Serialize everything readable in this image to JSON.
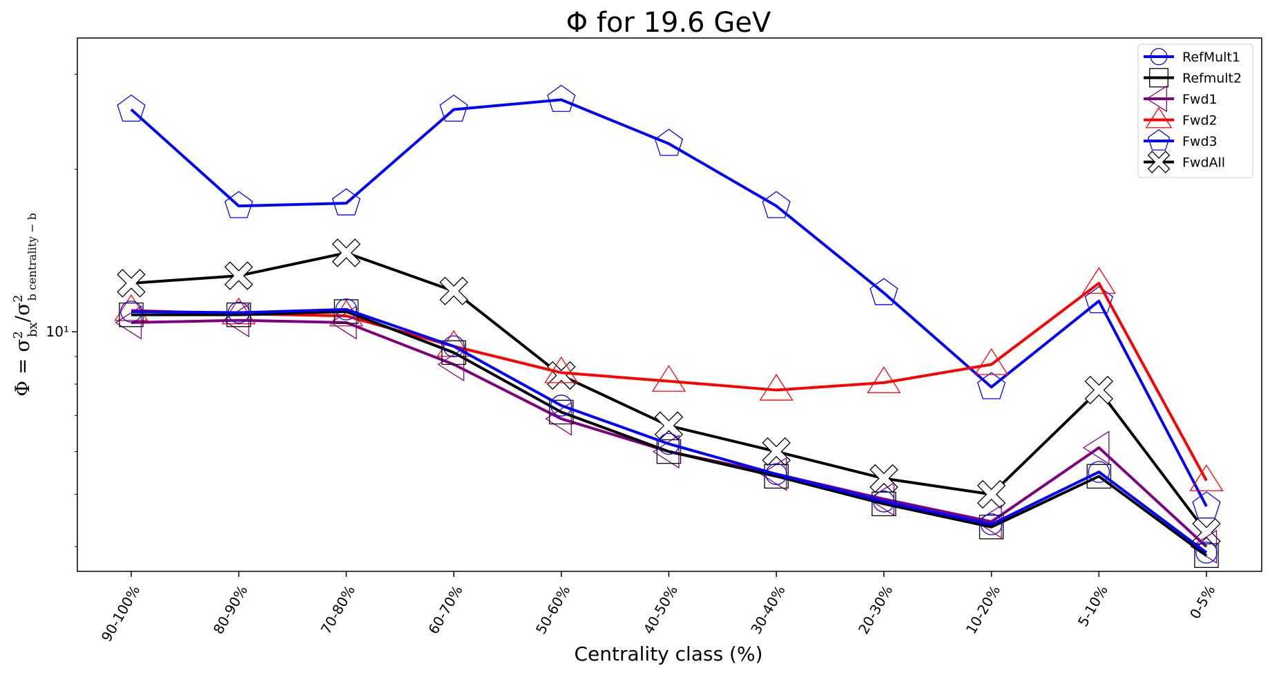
{
  "chart_data": {
    "type": "line",
    "title": "Φ for 19.6 GeV",
    "xlabel": "Centrality class (%)",
    "ylabel": "Φ = σ²_bx / σ²_b_centrality − b",
    "y_scale": "log",
    "ylim": [
      3.6,
      35
    ],
    "y_ticks": [
      {
        "value": 10,
        "label": "10¹"
      }
    ],
    "grid": false,
    "legend_position": "top-right",
    "categories": [
      "90-100%",
      "80-90%",
      "70-80%",
      "60-70%",
      "50-60%",
      "40-50%",
      "30-40%",
      "20-30%",
      "10-20%",
      "5-10%",
      "0-5%"
    ],
    "series": [
      {
        "name": "RefMult1",
        "color": "#0000ff",
        "marker": "circle",
        "values": [
          10.9,
          10.85,
          11.0,
          9.4,
          7.3,
          6.2,
          5.45,
          4.85,
          4.4,
          5.5,
          3.9
        ]
      },
      {
        "name": "Refmult2",
        "color": "#000000",
        "marker": "square",
        "values": [
          10.75,
          10.75,
          10.9,
          9.15,
          7.1,
          6.0,
          5.4,
          4.8,
          4.35,
          5.4,
          3.85
        ]
      },
      {
        "name": "Fwd1",
        "color": "#800080",
        "marker": "triangle-left",
        "values": [
          10.4,
          10.5,
          10.4,
          8.7,
          6.9,
          6.0,
          5.45,
          4.9,
          4.45,
          6.1,
          4.0
        ]
      },
      {
        "name": "Fwd2",
        "color": "#ff0000",
        "marker": "triangle-up",
        "values": [
          10.95,
          10.8,
          10.7,
          9.4,
          8.4,
          8.1,
          7.8,
          8.05,
          8.7,
          12.3,
          5.3
        ]
      },
      {
        "name": "Fwd3",
        "color": "#0000ff",
        "marker": "pentagon",
        "values": [
          25.8,
          17.1,
          17.3,
          25.8,
          26.9,
          22.3,
          17.1,
          11.8,
          7.9,
          11.4,
          4.75
        ]
      },
      {
        "name": "FwdAll",
        "color": "#000000",
        "marker": "x",
        "values": [
          12.3,
          12.7,
          14.0,
          11.9,
          8.3,
          6.7,
          6.0,
          5.35,
          5.0,
          7.8,
          4.25
        ]
      }
    ]
  }
}
